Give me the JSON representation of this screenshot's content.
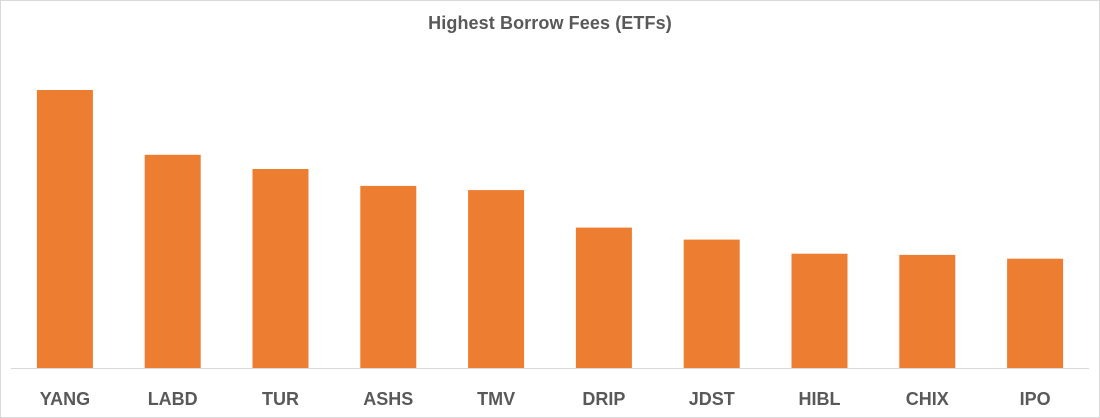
{
  "chart_data": {
    "type": "bar",
    "title": "Highest Borrow Fees (ETFs)",
    "categories": [
      "YANG",
      "LABD",
      "TUR",
      "ASHS",
      "TMV",
      "DRIP",
      "JDST",
      "HIBL",
      "CHIX",
      "IPO"
    ],
    "values": [
      100,
      76.7,
      71.6,
      65.5,
      64.0,
      50.5,
      46.2,
      41.1,
      40.7,
      39.3
    ],
    "xlabel": "",
    "ylabel": "",
    "ylim": [
      0,
      100
    ],
    "grid": false,
    "legend": "none",
    "bar_color": "#ED7D31",
    "axis_color": "#d9d9d9",
    "label_color": "#595959"
  }
}
